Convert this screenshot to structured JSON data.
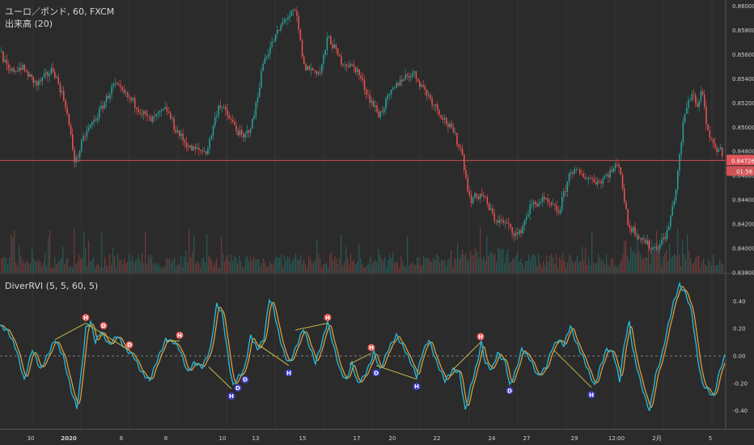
{
  "legend": {
    "main": "ユーロ／ポンド, 60, FXCM",
    "volume": "出来高 (20)",
    "indicator": "DiverRVI (5, 5, 60, 5)"
  },
  "price_axis": {
    "ticks": [
      "0.86000",
      "0.85800",
      "0.85600",
      "0.85400",
      "0.85200",
      "0.85000",
      "0.84800",
      "0.84600",
      "0.84400",
      "0.84200",
      "0.84000",
      "0.83800"
    ],
    "current_price": "0.84726",
    "countdown": "01:56"
  },
  "rvi_axis": {
    "ticks": [
      "0.40",
      "0.20",
      "0.00",
      "-0.20",
      "-0.40"
    ]
  },
  "date_axis": {
    "labels": [
      {
        "text": "30",
        "bold": false
      },
      {
        "text": "2020",
        "bold": true
      },
      {
        "text": "6",
        "bold": false
      },
      {
        "text": "8",
        "bold": false
      },
      {
        "text": "10",
        "bold": false
      },
      {
        "text": "13",
        "bold": false
      },
      {
        "text": "15",
        "bold": false
      },
      {
        "text": "17",
        "bold": false
      },
      {
        "text": "20",
        "bold": false
      },
      {
        "text": "22",
        "bold": false
      },
      {
        "text": "24",
        "bold": false
      },
      {
        "text": "27",
        "bold": false
      },
      {
        "text": "29",
        "bold": false
      },
      {
        "text": "12:00",
        "bold": false
      },
      {
        "text": "2月",
        "bold": false
      },
      {
        "text": "5",
        "bold": false
      }
    ]
  },
  "markers": [
    {
      "label": "H",
      "kind": "top"
    },
    {
      "label": "D",
      "kind": "top"
    },
    {
      "label": "D",
      "kind": "top"
    },
    {
      "label": "H",
      "kind": "top"
    },
    {
      "label": "H",
      "kind": "bottom"
    },
    {
      "label": "D",
      "kind": "bottom"
    },
    {
      "label": "D",
      "kind": "bottom"
    },
    {
      "label": "H",
      "kind": "bottom"
    },
    {
      "label": "H",
      "kind": "top"
    },
    {
      "label": "H",
      "kind": "top"
    },
    {
      "label": "D",
      "kind": "bottom"
    },
    {
      "label": "H",
      "kind": "bottom"
    },
    {
      "label": "H",
      "kind": "top"
    },
    {
      "label": "D",
      "kind": "bottom"
    },
    {
      "label": "H",
      "kind": "bottom"
    }
  ],
  "colors": {
    "background": "#2b2b2b",
    "up": "#26a69a",
    "down": "#ef5350",
    "rvi": "#26b5d6",
    "signal": "#e8a33a",
    "divergence": "#c8b84a",
    "price_line": "#e0555a",
    "marker_top": "#f05a5a",
    "marker_bottom": "#3f3fd0"
  },
  "chart_data": [
    {
      "type": "candlestick",
      "title": "ユーロ／ポンド, 60, FXCM",
      "ylim": [
        0.838,
        0.8605
      ],
      "current_price": 0.84726,
      "anchors": [
        [
          0,
          0.8562
        ],
        [
          10,
          0.8545
        ],
        [
          25,
          0.855
        ],
        [
          45,
          0.8535
        ],
        [
          65,
          0.8548
        ],
        [
          80,
          0.852
        ],
        [
          92,
          0.847
        ],
        [
          105,
          0.8495
        ],
        [
          120,
          0.851
        ],
        [
          140,
          0.8535
        ],
        [
          165,
          0.852
        ],
        [
          185,
          0.8505
        ],
        [
          205,
          0.8515
        ],
        [
          215,
          0.85
        ],
        [
          225,
          0.849
        ],
        [
          235,
          0.8482
        ],
        [
          255,
          0.848
        ],
        [
          270,
          0.852
        ],
        [
          285,
          0.8505
        ],
        [
          300,
          0.849
        ],
        [
          312,
          0.8505
        ],
        [
          325,
          0.8555
        ],
        [
          340,
          0.8575
        ],
        [
          352,
          0.859
        ],
        [
          365,
          0.8595
        ],
        [
          375,
          0.855
        ],
        [
          395,
          0.8545
        ],
        [
          405,
          0.8575
        ],
        [
          420,
          0.8555
        ],
        [
          440,
          0.8548
        ],
        [
          455,
          0.8525
        ],
        [
          468,
          0.851
        ],
        [
          480,
          0.8525
        ],
        [
          495,
          0.854
        ],
        [
          510,
          0.8545
        ],
        [
          525,
          0.853
        ],
        [
          545,
          0.851
        ],
        [
          560,
          0.8495
        ],
        [
          570,
          0.848
        ],
        [
          580,
          0.844
        ],
        [
          595,
          0.8445
        ],
        [
          610,
          0.8425
        ],
        [
          625,
          0.842
        ],
        [
          640,
          0.841
        ],
        [
          655,
          0.8435
        ],
        [
          670,
          0.844
        ],
        [
          690,
          0.843
        ],
        [
          705,
          0.8465
        ],
        [
          720,
          0.846
        ],
        [
          740,
          0.8455
        ],
        [
          765,
          0.847
        ],
        [
          775,
          0.842
        ],
        [
          790,
          0.841
        ],
        [
          805,
          0.84
        ],
        [
          815,
          0.8403
        ],
        [
          825,
          0.8415
        ],
        [
          835,
          0.845
        ],
        [
          845,
          0.851
        ],
        [
          855,
          0.853
        ],
        [
          862,
          0.8515
        ],
        [
          867,
          0.8535
        ],
        [
          872,
          0.85
        ],
        [
          880,
          0.8485
        ],
        [
          895,
          0.8478
        ]
      ]
    },
    {
      "type": "bar",
      "title": "出来高 (20)",
      "note": "volume histogram, relative values"
    },
    {
      "type": "line",
      "title": "DiverRVI (5, 5, 60, 5)",
      "ylim": [
        -0.45,
        0.55
      ],
      "series": [
        {
          "values_anchors": [
            [
              0,
              0.22
            ],
            [
              10,
              0.18
            ],
            [
              20,
              0.05
            ],
            [
              30,
              -0.18
            ],
            [
              40,
              0.05
            ],
            [
              50,
              -0.1
            ],
            [
              60,
              0.02
            ],
            [
              68,
              0.12
            ],
            [
              78,
              0.0
            ],
            [
              88,
              -0.25
            ],
            [
              95,
              -0.38
            ],
            [
              100,
              -0.15
            ],
            [
              106,
              0.2
            ],
            [
              112,
              0.25
            ],
            [
              118,
              0.1
            ],
            [
              125,
              0.18
            ],
            [
              135,
              0.08
            ],
            [
              145,
              0.15
            ],
            [
              155,
              0.05
            ],
            [
              165,
              0.0
            ],
            [
              175,
              -0.12
            ],
            [
              185,
              -0.18
            ],
            [
              195,
              -0.02
            ],
            [
              205,
              0.12
            ],
            [
              215,
              0.1
            ],
            [
              222,
              0.05
            ],
            [
              232,
              -0.12
            ],
            [
              240,
              -0.05
            ],
            [
              250,
              -0.08
            ],
            [
              260,
              0.05
            ],
            [
              268,
              0.38
            ],
            [
              275,
              0.3
            ],
            [
              283,
              -0.05
            ],
            [
              288,
              -0.22
            ],
            [
              295,
              -0.15
            ],
            [
              302,
              -0.1
            ],
            [
              310,
              0.15
            ],
            [
              318,
              0.05
            ],
            [
              326,
              0.12
            ],
            [
              333,
              0.42
            ],
            [
              338,
              0.35
            ],
            [
              345,
              0.15
            ],
            [
              352,
              0.0
            ],
            [
              358,
              -0.05
            ],
            [
              365,
              0.05
            ],
            [
              375,
              0.2
            ],
            [
              382,
              0.08
            ],
            [
              390,
              -0.05
            ],
            [
              398,
              0.1
            ],
            [
              405,
              0.25
            ],
            [
              412,
              0.08
            ],
            [
              420,
              -0.1
            ],
            [
              428,
              -0.18
            ],
            [
              435,
              -0.05
            ],
            [
              442,
              -0.2
            ],
            [
              450,
              -0.15
            ],
            [
              458,
              -0.05
            ],
            [
              462,
              0.03
            ],
            [
              470,
              -0.1
            ],
            [
              480,
              0.05
            ],
            [
              490,
              0.15
            ],
            [
              500,
              0.05
            ],
            [
              508,
              -0.05
            ],
            [
              515,
              -0.15
            ],
            [
              522,
              0.02
            ],
            [
              530,
              0.12
            ],
            [
              540,
              -0.05
            ],
            [
              550,
              -0.18
            ],
            [
              560,
              -0.1
            ],
            [
              568,
              -0.12
            ],
            [
              575,
              -0.4
            ],
            [
              582,
              -0.22
            ],
            [
              590,
              -0.05
            ],
            [
              595,
              0.1
            ],
            [
              600,
              -0.05
            ],
            [
              608,
              -0.1
            ],
            [
              615,
              0.02
            ],
            [
              625,
              -0.05
            ],
            [
              630,
              -0.22
            ],
            [
              638,
              -0.1
            ],
            [
              645,
              0.05
            ],
            [
              655,
              -0.02
            ],
            [
              665,
              -0.15
            ],
            [
              675,
              -0.08
            ],
            [
              682,
              0.05
            ],
            [
              690,
              0.12
            ],
            [
              697,
              0.08
            ],
            [
              705,
              0.22
            ],
            [
              712,
              0.1
            ],
            [
              720,
              0.0
            ],
            [
              728,
              -0.12
            ],
            [
              735,
              -0.22
            ],
            [
              742,
              -0.08
            ],
            [
              750,
              0.05
            ],
            [
              758,
              0.02
            ],
            [
              766,
              -0.18
            ],
            [
              772,
              0.1
            ],
            [
              778,
              0.25
            ],
            [
              782,
              0.05
            ],
            [
              790,
              -0.15
            ],
            [
              797,
              -0.3
            ],
            [
              803,
              -0.4
            ],
            [
              810,
              -0.15
            ],
            [
              818,
              0.0
            ],
            [
              825,
              0.2
            ],
            [
              832,
              0.38
            ],
            [
              840,
              0.52
            ],
            [
              848,
              0.45
            ],
            [
              855,
              0.32
            ],
            [
              862,
              0.0
            ],
            [
              868,
              -0.2
            ],
            [
              875,
              -0.25
            ],
            [
              882,
              -0.3
            ],
            [
              890,
              -0.1
            ],
            [
              896,
              0.0
            ]
          ]
        }
      ]
    }
  ]
}
